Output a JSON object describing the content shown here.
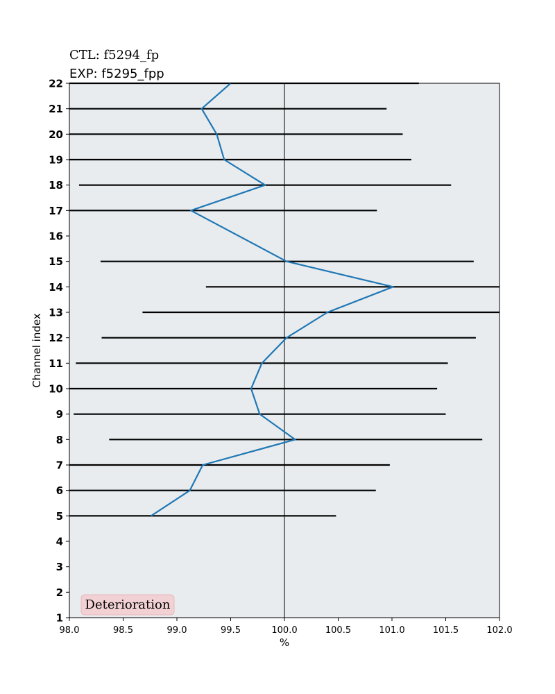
{
  "header": {
    "ctl_label": "CTL: f5294_fp",
    "exp_label": "EXP: f5295_fpp"
  },
  "badge": {
    "label": "Deterioration",
    "fill": "#f1d1d4",
    "edge": "#e8b8bd"
  },
  "colors": {
    "plot_bg": "#e8ecef",
    "line": "#1f77b4",
    "errorbar": "#000000",
    "refline": "#000000"
  },
  "chart_data": {
    "type": "line",
    "xlabel": "%",
    "ylabel": "Channel index",
    "xlim": [
      98.0,
      102.0
    ],
    "ylim": [
      1,
      22
    ],
    "xticks": [
      "98.0",
      "98.5",
      "99.0",
      "99.5",
      "100.0",
      "100.5",
      "101.0",
      "101.5",
      "102.0"
    ],
    "yticks": [
      "1",
      "2",
      "3",
      "4",
      "5",
      "6",
      "7",
      "8",
      "9",
      "10",
      "11",
      "12",
      "13",
      "14",
      "15",
      "16",
      "17",
      "18",
      "19",
      "20",
      "21",
      "22"
    ],
    "reference_x": 100.0,
    "grid": false,
    "points": [
      {
        "channel": 5,
        "value": 98.76,
        "low": 98.0,
        "high": 100.48
      },
      {
        "channel": 6,
        "value": 99.12,
        "low": 98.0,
        "high": 100.85
      },
      {
        "channel": 7,
        "value": 99.24,
        "low": 98.0,
        "high": 100.98
      },
      {
        "channel": 8,
        "value": 100.1,
        "low": 98.37,
        "high": 101.84
      },
      {
        "channel": 9,
        "value": 99.77,
        "low": 98.04,
        "high": 101.5
      },
      {
        "channel": 10,
        "value": 99.69,
        "low": 98.0,
        "high": 101.42
      },
      {
        "channel": 11,
        "value": 99.79,
        "low": 98.06,
        "high": 101.52
      },
      {
        "channel": 12,
        "value": 100.02,
        "low": 98.3,
        "high": 101.78
      },
      {
        "channel": 13,
        "value": 100.4,
        "low": 98.68,
        "high": 102.0
      },
      {
        "channel": 14,
        "value": 101.01,
        "low": 99.27,
        "high": 102.0
      },
      {
        "channel": 15,
        "value": 100.02,
        "low": 98.29,
        "high": 101.76
      },
      {
        "channel": 17,
        "value": 99.13,
        "low": 98.0,
        "high": 100.86
      },
      {
        "channel": 18,
        "value": 99.82,
        "low": 98.09,
        "high": 101.55
      },
      {
        "channel": 19,
        "value": 99.44,
        "low": 98.0,
        "high": 101.18
      },
      {
        "channel": 20,
        "value": 99.37,
        "low": 98.0,
        "high": 101.1
      },
      {
        "channel": 21,
        "value": 99.23,
        "low": 98.0,
        "high": 100.95
      },
      {
        "channel": 22,
        "value": 99.5,
        "low": 98.0,
        "high": 101.25
      }
    ]
  }
}
